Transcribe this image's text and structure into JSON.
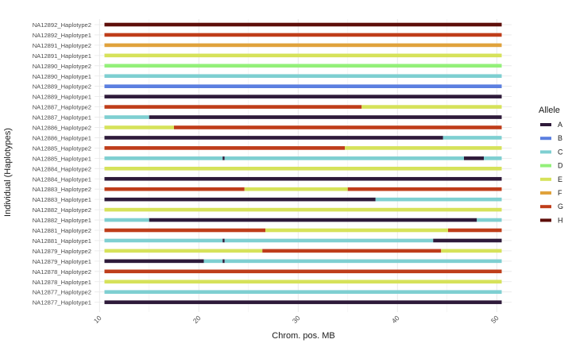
{
  "chart_data": {
    "type": "bar",
    "orientation": "horizontal-segments",
    "xlabel": "Chrom. pos. MB",
    "ylabel": "Individual (Haplotypes)",
    "xlim": [
      9.5,
      51.5
    ],
    "xticks": [
      10,
      20,
      30,
      40,
      50
    ],
    "grid": true,
    "legend": {
      "title": "Allele",
      "placement": "right",
      "entries": [
        {
          "name": "A",
          "color": "#2e1a3a"
        },
        {
          "name": "B",
          "color": "#5b7fe0"
        },
        {
          "name": "C",
          "color": "#7ecfd1"
        },
        {
          "name": "D",
          "color": "#93f07a"
        },
        {
          "name": "E",
          "color": "#d6e25a"
        },
        {
          "name": "F",
          "color": "#e0a23c"
        },
        {
          "name": "G",
          "color": "#bf3d1a"
        },
        {
          "name": "H",
          "color": "#5e0e0a"
        }
      ]
    },
    "categories": [
      "NA12892_Haplotype2",
      "NA12892_Haplotype1",
      "NA12891_Haplotype2",
      "NA12891_Haplotype1",
      "NA12890_Haplotype2",
      "NA12890_Haplotype1",
      "NA12889_Haplotype2",
      "NA12889_Haplotype1",
      "NA12887_Haplotype2",
      "NA12887_Haplotype1",
      "NA12886_Haplotype2",
      "NA12886_Haplotype1",
      "NA12885_Haplotype2",
      "NA12885_Haplotype1",
      "NA12884_Haplotype2",
      "NA12884_Haplotype1",
      "NA12883_Haplotype2",
      "NA12883_Haplotype1",
      "NA12882_Haplotype2",
      "NA12882_Haplotype1",
      "NA12881_Haplotype2",
      "NA12881_Haplotype1",
      "NA12879_Haplotype2",
      "NA12879_Haplotype1",
      "NA12878_Haplotype2",
      "NA12878_Haplotype1",
      "NA12877_Haplotype2",
      "NA12877_Haplotype1"
    ],
    "rows": [
      [
        {
          "start": 10.5,
          "end": 50.5,
          "allele": "H"
        }
      ],
      [
        {
          "start": 10.5,
          "end": 50.5,
          "allele": "G"
        }
      ],
      [
        {
          "start": 10.5,
          "end": 50.5,
          "allele": "F"
        }
      ],
      [
        {
          "start": 10.5,
          "end": 50.5,
          "allele": "E"
        }
      ],
      [
        {
          "start": 10.5,
          "end": 50.5,
          "allele": "D"
        }
      ],
      [
        {
          "start": 10.5,
          "end": 50.5,
          "allele": "C"
        }
      ],
      [
        {
          "start": 10.5,
          "end": 50.5,
          "allele": "B"
        }
      ],
      [
        {
          "start": 10.5,
          "end": 50.5,
          "allele": "A"
        }
      ],
      [
        {
          "start": 10.5,
          "end": 36.4,
          "allele": "G"
        },
        {
          "start": 36.4,
          "end": 50.5,
          "allele": "E"
        }
      ],
      [
        {
          "start": 10.5,
          "end": 15.0,
          "allele": "C"
        },
        {
          "start": 15.0,
          "end": 50.5,
          "allele": "A"
        }
      ],
      [
        {
          "start": 10.5,
          "end": 17.5,
          "allele": "E"
        },
        {
          "start": 17.5,
          "end": 50.5,
          "allele": "G"
        }
      ],
      [
        {
          "start": 10.5,
          "end": 44.6,
          "allele": "A"
        },
        {
          "start": 44.6,
          "end": 50.5,
          "allele": "C"
        }
      ],
      [
        {
          "start": 10.5,
          "end": 34.7,
          "allele": "G"
        },
        {
          "start": 34.7,
          "end": 50.5,
          "allele": "E"
        }
      ],
      [
        {
          "start": 10.5,
          "end": 22.4,
          "allele": "C"
        },
        {
          "start": 22.4,
          "end": 22.6,
          "allele": "A"
        },
        {
          "start": 22.6,
          "end": 46.7,
          "allele": "C"
        },
        {
          "start": 46.7,
          "end": 48.7,
          "allele": "A"
        },
        {
          "start": 48.7,
          "end": 50.5,
          "allele": "C"
        }
      ],
      [
        {
          "start": 10.5,
          "end": 50.5,
          "allele": "E"
        }
      ],
      [
        {
          "start": 10.5,
          "end": 50.5,
          "allele": "A"
        }
      ],
      [
        {
          "start": 10.5,
          "end": 24.6,
          "allele": "G"
        },
        {
          "start": 24.6,
          "end": 35.0,
          "allele": "E"
        },
        {
          "start": 35.0,
          "end": 50.5,
          "allele": "G"
        }
      ],
      [
        {
          "start": 10.5,
          "end": 37.8,
          "allele": "A"
        },
        {
          "start": 37.8,
          "end": 50.5,
          "allele": "C"
        }
      ],
      [
        {
          "start": 10.5,
          "end": 50.5,
          "allele": "E"
        }
      ],
      [
        {
          "start": 10.5,
          "end": 15.0,
          "allele": "C"
        },
        {
          "start": 15.0,
          "end": 48.0,
          "allele": "A"
        },
        {
          "start": 48.0,
          "end": 50.5,
          "allele": "C"
        }
      ],
      [
        {
          "start": 10.5,
          "end": 26.7,
          "allele": "G"
        },
        {
          "start": 26.7,
          "end": 45.1,
          "allele": "E"
        },
        {
          "start": 45.1,
          "end": 50.5,
          "allele": "G"
        }
      ],
      [
        {
          "start": 10.5,
          "end": 22.4,
          "allele": "C"
        },
        {
          "start": 22.4,
          "end": 22.6,
          "allele": "A"
        },
        {
          "start": 22.6,
          "end": 43.6,
          "allele": "C"
        },
        {
          "start": 43.6,
          "end": 50.5,
          "allele": "A"
        }
      ],
      [
        {
          "start": 10.5,
          "end": 26.4,
          "allele": "E"
        },
        {
          "start": 26.4,
          "end": 44.4,
          "allele": "G"
        },
        {
          "start": 44.4,
          "end": 50.5,
          "allele": "E"
        }
      ],
      [
        {
          "start": 10.5,
          "end": 20.5,
          "allele": "A"
        },
        {
          "start": 20.5,
          "end": 22.4,
          "allele": "C"
        },
        {
          "start": 22.4,
          "end": 22.6,
          "allele": "A"
        },
        {
          "start": 22.6,
          "end": 50.5,
          "allele": "C"
        }
      ],
      [
        {
          "start": 10.5,
          "end": 50.5,
          "allele": "G"
        }
      ],
      [
        {
          "start": 10.5,
          "end": 50.5,
          "allele": "E"
        }
      ],
      [
        {
          "start": 10.5,
          "end": 50.5,
          "allele": "C"
        }
      ],
      [
        {
          "start": 10.5,
          "end": 50.5,
          "allele": "A"
        }
      ]
    ]
  }
}
